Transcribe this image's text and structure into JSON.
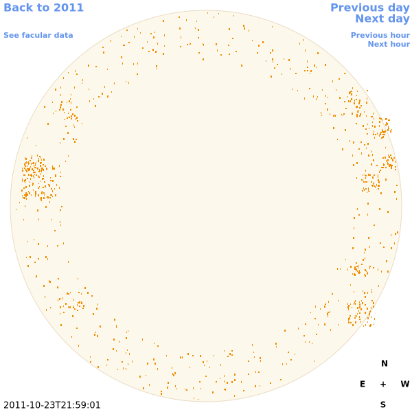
{
  "nav": {
    "back": "Back to 2011",
    "facular": "See facular data",
    "previous_day": "Previous day",
    "next_day": "Next day",
    "previous_hour": "Previous hour",
    "next_hour": "Next hour"
  },
  "timestamp": "2011-10-23T21:59:01",
  "compass": {
    "north": "N",
    "east": "E",
    "center": "+",
    "west": "W",
    "south": "S"
  }
}
